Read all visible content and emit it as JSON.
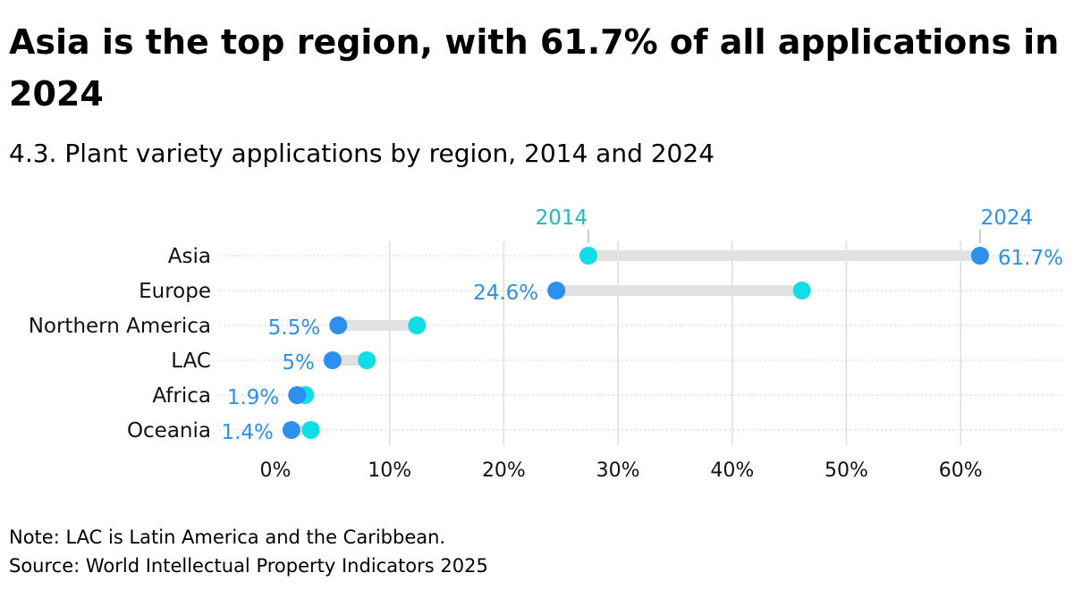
{
  "header": {
    "title": "Asia is the top region, with 61.7% of all applications in 2024",
    "subtitle": "4.3. Plant variety applications by region, 2014 and 2024"
  },
  "footer": {
    "note": "Note: LAC is Latin America and the Caribbean.",
    "source": "Source: World Intellectual Property Indicators 2025"
  },
  "colors": {
    "series_2014": "#10dde6",
    "series_2024": "#2d8fee",
    "label_2014": "#1fb9c4",
    "label_2024": "#2d8fee",
    "connector": "#e2e2e2",
    "grid": "#dddddd"
  },
  "chart_data": {
    "type": "dumbbell",
    "title": "4.3. Plant variety applications by region, 2014 and 2024",
    "categories": [
      "Asia",
      "Europe",
      "Northern America",
      "LAC",
      "Africa",
      "Oceania"
    ],
    "series": [
      {
        "name": "2014",
        "values": [
          27.4,
          46.1,
          12.4,
          8.0,
          2.6,
          3.1
        ]
      },
      {
        "name": "2024",
        "values": [
          61.7,
          24.6,
          5.5,
          5.0,
          1.9,
          1.4
        ]
      }
    ],
    "data_labels": [
      "61.7%",
      "24.6%",
      "5.5%",
      "5%",
      "1.9%",
      "1.4%"
    ],
    "x_ticks": [
      "0%",
      "10%",
      "20%",
      "30%",
      "40%",
      "50%",
      "60%"
    ],
    "x_tick_values": [
      0,
      10,
      20,
      30,
      40,
      50,
      60
    ],
    "xlim": [
      -5,
      69
    ],
    "xlabel": "",
    "ylabel": "",
    "grid": true,
    "legend": "direct-labels-top"
  }
}
